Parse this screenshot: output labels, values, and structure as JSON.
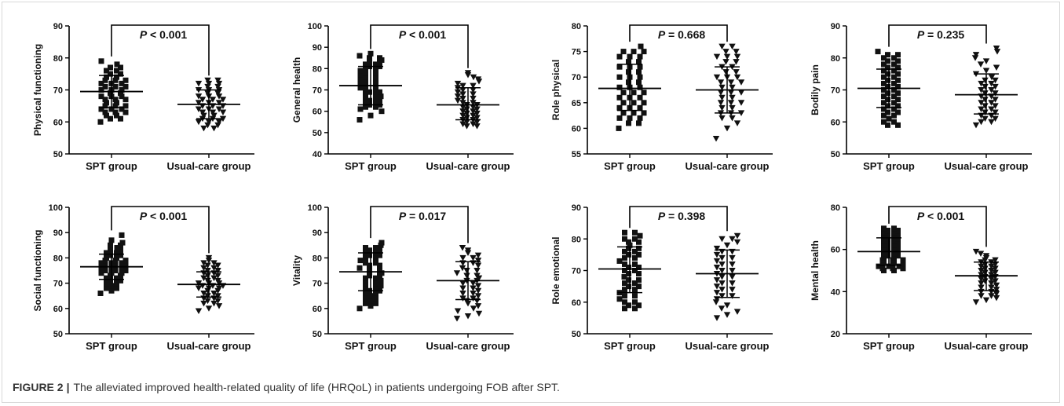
{
  "figure": {
    "label": "FIGURE 2",
    "separator": "|",
    "caption": "The alleviated improved health-related quality of life (HRQoL) in patients undergoing FOB after SPT."
  },
  "colors": {
    "marker": "#111111",
    "axis": "#000000",
    "text": "#111111"
  },
  "chart_data": [
    {
      "type": "scatter",
      "title": "",
      "ylabel": "Physical functioning",
      "ylim": [
        50,
        90
      ],
      "yticks": [
        50,
        60,
        70,
        80,
        90
      ],
      "categories": [
        "SPT group",
        "Usual-care group"
      ],
      "p_prefix": "P",
      "p_text": "< 0.001",
      "groups": [
        {
          "name": "SPT group",
          "marker": "square",
          "mean": 69.5,
          "sd_low": 64.5,
          "sd_high": 74.5,
          "values": [
            60,
            61,
            61,
            62,
            62,
            63,
            63,
            63,
            64,
            64,
            64,
            65,
            65,
            65,
            66,
            66,
            67,
            67,
            67,
            68,
            68,
            68,
            69,
            69,
            70,
            70,
            70,
            71,
            71,
            71,
            72,
            72,
            72,
            73,
            73,
            73,
            74,
            74,
            75,
            75,
            76,
            76,
            77,
            77,
            78,
            79
          ]
        },
        {
          "name": "Usual-care group",
          "marker": "triangle-down",
          "mean": 65.5,
          "sd_low": 61.0,
          "sd_high": 70.0,
          "values": [
            58,
            58,
            59,
            59,
            60,
            60,
            60,
            61,
            61,
            61,
            62,
            62,
            63,
            63,
            63,
            64,
            64,
            64,
            65,
            65,
            65,
            66,
            66,
            66,
            67,
            67,
            67,
            68,
            68,
            68,
            69,
            69,
            70,
            70,
            70,
            71,
            71,
            72,
            72,
            72,
            73,
            73
          ]
        }
      ]
    },
    {
      "type": "scatter",
      "title": "",
      "ylabel": "General health",
      "ylim": [
        40,
        100
      ],
      "yticks": [
        40,
        50,
        60,
        70,
        80,
        90,
        100
      ],
      "categories": [
        "SPT group",
        "Usual-care group"
      ],
      "p_prefix": "P",
      "p_text": "< 0.001",
      "groups": [
        {
          "name": "SPT group",
          "marker": "square",
          "mean": 72.0,
          "sd_low": 63.0,
          "sd_high": 81.0,
          "values": [
            56,
            58,
            60,
            61,
            62,
            62,
            63,
            63,
            64,
            64,
            65,
            65,
            66,
            66,
            67,
            68,
            68,
            69,
            69,
            70,
            70,
            71,
            72,
            72,
            73,
            74,
            74,
            75,
            76,
            76,
            77,
            78,
            78,
            79,
            80,
            80,
            81,
            81,
            82,
            82,
            83,
            83,
            84,
            85,
            85,
            86,
            87
          ]
        },
        {
          "name": "Usual-care group",
          "marker": "triangle-down",
          "mean": 63.0,
          "sd_low": 56.0,
          "sd_high": 71.0,
          "values": [
            53,
            53,
            54,
            54,
            55,
            55,
            56,
            56,
            57,
            57,
            58,
            58,
            59,
            59,
            60,
            60,
            61,
            61,
            62,
            62,
            63,
            63,
            64,
            64,
            65,
            66,
            66,
            67,
            68,
            68,
            69,
            70,
            70,
            71,
            72,
            72,
            73,
            74,
            75,
            76,
            77,
            78
          ]
        }
      ]
    },
    {
      "type": "scatter",
      "title": "",
      "ylabel": "Role physical",
      "ylim": [
        55,
        80
      ],
      "yticks": [
        55,
        60,
        65,
        70,
        75,
        80
      ],
      "categories": [
        "SPT group",
        "Usual-care group"
      ],
      "p_prefix": "P",
      "p_text": "= 0.668",
      "groups": [
        {
          "name": "SPT group",
          "marker": "square",
          "mean": 67.8,
          "sd_low": 63.5,
          "sd_high": 72.5,
          "values": [
            60,
            61,
            61,
            62,
            62,
            62,
            63,
            63,
            63,
            64,
            64,
            64,
            65,
            65,
            65,
            66,
            66,
            66,
            67,
            67,
            67,
            68,
            68,
            68,
            69,
            69,
            70,
            70,
            70,
            71,
            71,
            72,
            72,
            72,
            73,
            73,
            74,
            74,
            74,
            75,
            75,
            75,
            76
          ]
        },
        {
          "name": "Usual-care group",
          "marker": "triangle-down",
          "mean": 67.5,
          "sd_low": 63.0,
          "sd_high": 72.0,
          "values": [
            58,
            60,
            61,
            62,
            62,
            63,
            63,
            63,
            64,
            64,
            65,
            65,
            65,
            66,
            66,
            67,
            67,
            67,
            68,
            68,
            69,
            69,
            69,
            70,
            70,
            70,
            71,
            71,
            72,
            72,
            73,
            73,
            74,
            74,
            74,
            75,
            75,
            76,
            76
          ]
        }
      ]
    },
    {
      "type": "scatter",
      "title": "",
      "ylabel": "Bodily pain",
      "ylim": [
        50,
        90
      ],
      "yticks": [
        50,
        60,
        70,
        80,
        90
      ],
      "categories": [
        "SPT group",
        "Usual-care group"
      ],
      "p_prefix": "P",
      "p_text": "= 0.235",
      "groups": [
        {
          "name": "SPT group",
          "marker": "square",
          "mean": 70.5,
          "sd_low": 64.5,
          "sd_high": 76.5,
          "values": [
            59,
            59,
            60,
            60,
            61,
            62,
            62,
            63,
            63,
            64,
            64,
            65,
            65,
            66,
            66,
            67,
            67,
            68,
            68,
            69,
            69,
            70,
            70,
            71,
            71,
            72,
            72,
            73,
            73,
            74,
            74,
            75,
            75,
            76,
            76,
            77,
            77,
            78,
            78,
            79,
            79,
            80,
            80,
            81,
            81,
            82
          ]
        },
        {
          "name": "Usual-care group",
          "marker": "triangle-down",
          "mean": 68.5,
          "sd_low": 62.5,
          "sd_high": 75.0,
          "values": [
            59,
            60,
            60,
            61,
            61,
            62,
            62,
            63,
            63,
            64,
            64,
            65,
            65,
            66,
            66,
            67,
            67,
            68,
            68,
            69,
            69,
            70,
            70,
            71,
            71,
            72,
            72,
            73,
            73,
            74,
            75,
            76,
            77,
            78,
            79,
            80,
            81,
            82,
            83
          ]
        }
      ]
    },
    {
      "type": "scatter",
      "title": "",
      "ylabel": "Social functioning",
      "ylim": [
        50,
        100
      ],
      "yticks": [
        50,
        60,
        70,
        80,
        90,
        100
      ],
      "categories": [
        "SPT group",
        "Usual-care group"
      ],
      "p_prefix": "P",
      "p_text": "< 0.001",
      "groups": [
        {
          "name": "SPT group",
          "marker": "square",
          "mean": 76.5,
          "sd_low": 71.5,
          "sd_high": 81.5,
          "values": [
            66,
            67,
            68,
            68,
            69,
            70,
            70,
            71,
            71,
            72,
            72,
            73,
            73,
            74,
            74,
            74,
            75,
            75,
            75,
            76,
            76,
            76,
            77,
            77,
            77,
            78,
            78,
            78,
            79,
            79,
            79,
            80,
            80,
            81,
            81,
            82,
            82,
            83,
            83,
            84,
            85,
            85,
            86,
            87,
            89
          ]
        },
        {
          "name": "Usual-care group",
          "marker": "triangle-down",
          "mean": 69.5,
          "sd_low": 64.5,
          "sd_high": 74.5,
          "values": [
            59,
            60,
            61,
            62,
            62,
            63,
            63,
            64,
            64,
            65,
            65,
            66,
            66,
            67,
            67,
            68,
            68,
            68,
            69,
            69,
            69,
            70,
            70,
            70,
            71,
            71,
            72,
            72,
            73,
            73,
            74,
            74,
            75,
            75,
            76,
            76,
            77,
            77,
            78,
            78,
            79,
            80
          ]
        }
      ]
    },
    {
      "type": "scatter",
      "title": "",
      "ylabel": "Vitality",
      "ylim": [
        50,
        100
      ],
      "yticks": [
        50,
        60,
        70,
        80,
        90,
        100
      ],
      "categories": [
        "SPT group",
        "Usual-care group"
      ],
      "p_prefix": "P",
      "p_text": "= 0.017",
      "groups": [
        {
          "name": "SPT group",
          "marker": "square",
          "mean": 74.5,
          "sd_low": 67.0,
          "sd_high": 82.0,
          "values": [
            60,
            61,
            62,
            62,
            63,
            64,
            64,
            65,
            66,
            66,
            67,
            67,
            68,
            68,
            69,
            70,
            70,
            71,
            72,
            72,
            73,
            73,
            74,
            75,
            75,
            76,
            77,
            77,
            78,
            78,
            79,
            80,
            80,
            81,
            81,
            82,
            82,
            83,
            83,
            84,
            84,
            85,
            86
          ]
        },
        {
          "name": "Usual-care group",
          "marker": "triangle-down",
          "mean": 71.0,
          "sd_low": 63.5,
          "sd_high": 78.5,
          "values": [
            56,
            57,
            58,
            59,
            60,
            61,
            62,
            63,
            63,
            64,
            64,
            65,
            66,
            66,
            67,
            68,
            68,
            69,
            70,
            70,
            71,
            71,
            72,
            73,
            73,
            74,
            75,
            75,
            76,
            77,
            78,
            78,
            79,
            80,
            80,
            81,
            82,
            83,
            84
          ]
        }
      ]
    },
    {
      "type": "scatter",
      "title": "",
      "ylabel": "Role emotional",
      "ylim": [
        50,
        90
      ],
      "yticks": [
        50,
        60,
        70,
        80,
        90
      ],
      "categories": [
        "SPT group",
        "Usual-care group"
      ],
      "p_prefix": "P",
      "p_text": "= 0.398",
      "groups": [
        {
          "name": "SPT group",
          "marker": "square",
          "mean": 70.5,
          "sd_low": 63.0,
          "sd_high": 77.5,
          "values": [
            58,
            58,
            59,
            59,
            60,
            60,
            61,
            62,
            62,
            63,
            64,
            64,
            65,
            65,
            66,
            66,
            67,
            67,
            68,
            69,
            69,
            70,
            70,
            71,
            71,
            72,
            72,
            73,
            74,
            74,
            75,
            75,
            76,
            76,
            77,
            77,
            78,
            79,
            79,
            80,
            80,
            81,
            82,
            82
          ]
        },
        {
          "name": "Usual-care group",
          "marker": "triangle-down",
          "mean": 69.0,
          "sd_low": 61.5,
          "sd_high": 76.5,
          "values": [
            55,
            56,
            57,
            58,
            59,
            60,
            61,
            62,
            62,
            63,
            64,
            64,
            65,
            66,
            66,
            67,
            68,
            68,
            69,
            70,
            70,
            71,
            72,
            72,
            73,
            74,
            74,
            75,
            76,
            76,
            77,
            78,
            79,
            80,
            80,
            81
          ]
        }
      ]
    },
    {
      "type": "scatter",
      "title": "",
      "ylabel": "Mental health",
      "ylim": [
        20,
        80
      ],
      "yticks": [
        20,
        40,
        60,
        80
      ],
      "categories": [
        "SPT group",
        "Usual-care group"
      ],
      "p_prefix": "P",
      "p_text": "< 0.001",
      "groups": [
        {
          "name": "SPT group",
          "marker": "square",
          "mean": 59.0,
          "sd_low": 52.5,
          "sd_high": 65.5,
          "values": [
            50,
            50,
            51,
            51,
            51,
            52,
            52,
            52,
            53,
            53,
            53,
            54,
            54,
            55,
            55,
            55,
            56,
            56,
            57,
            57,
            58,
            58,
            59,
            59,
            60,
            60,
            61,
            61,
            62,
            62,
            63,
            63,
            64,
            64,
            65,
            65,
            66,
            66,
            67,
            67,
            68,
            68,
            69,
            69,
            70,
            70
          ]
        },
        {
          "name": "Usual-care group",
          "marker": "triangle-down",
          "mean": 47.5,
          "sd_low": 40.5,
          "sd_high": 54.0,
          "values": [
            35,
            36,
            37,
            38,
            38,
            39,
            40,
            40,
            41,
            42,
            42,
            43,
            44,
            44,
            45,
            45,
            46,
            46,
            47,
            47,
            48,
            48,
            49,
            49,
            50,
            50,
            51,
            51,
            52,
            52,
            53,
            53,
            54,
            54,
            55,
            55,
            56,
            57,
            58,
            59
          ]
        }
      ]
    }
  ]
}
